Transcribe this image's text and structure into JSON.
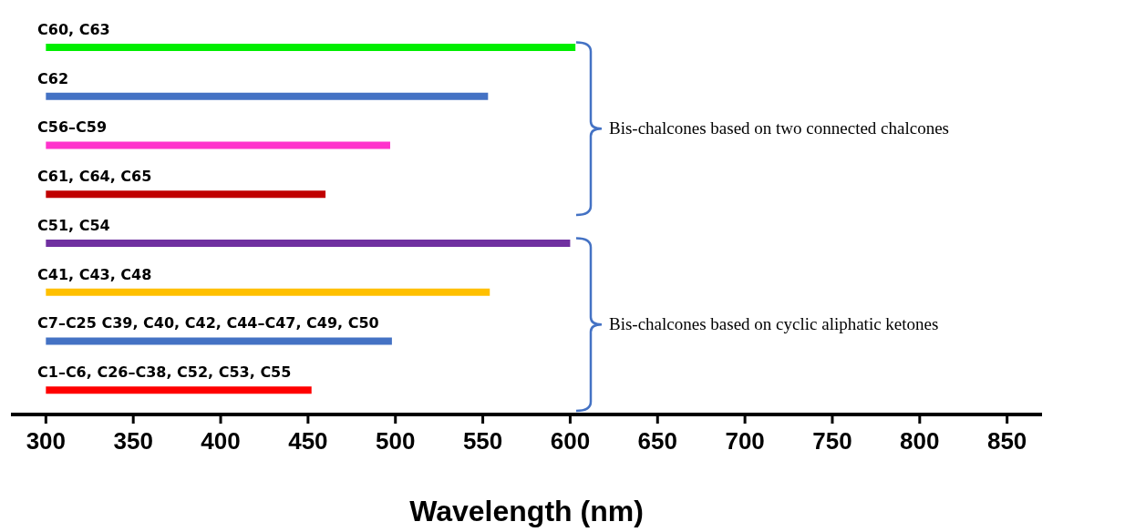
{
  "chart_data": {
    "type": "bar",
    "orientation": "horizontal",
    "xlabel": "Wavelength (nm)",
    "categories": [
      "C60, C63",
      "C62",
      "C56–C59",
      "C61, C64, C65",
      "C51, C54",
      "C41, C43, C48",
      "C7–C25 C39, C40, C42, C44–C47, C49, C50",
      "C1–C6, C26–C38, C52, C53, C55"
    ],
    "base": [
      300,
      300,
      300,
      300,
      300,
      300,
      300,
      300
    ],
    "values": [
      303,
      253,
      197,
      160,
      300,
      254,
      198,
      152
    ],
    "colors": [
      "#00ee00",
      "#4472c4",
      "#ff33cc",
      "#c00000",
      "#7030a0",
      "#ffc000",
      "#4472c4",
      "#ff0000"
    ],
    "xlim": [
      280,
      870
    ],
    "xticks": [
      300,
      350,
      400,
      450,
      500,
      550,
      600,
      650,
      700,
      750,
      800,
      850
    ],
    "annotations": [
      "Bis-chalcones based on two connected chalcones",
      "Bis-chalcones based on cyclic aliphatic ketones"
    ]
  }
}
